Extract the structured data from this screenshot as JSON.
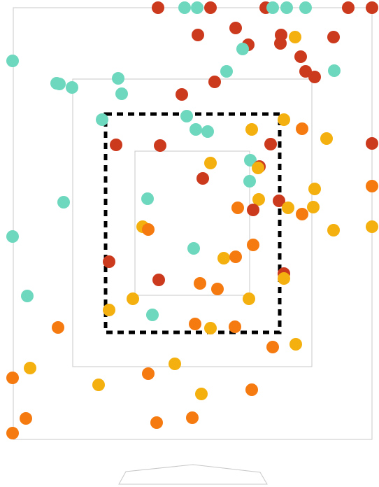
{
  "colors": {
    "background": "#ffffff",
    "outline": "#c8c8c8",
    "dashed_frame": "#000000",
    "dot_teal": "#6ed8bf",
    "dot_red": "#cc3a1e",
    "dot_orange": "#f57a10",
    "dot_yellow": "#f4b00e"
  },
  "legend_colors": [
    "dot_teal",
    "dot_red",
    "dot_orange",
    "dot_yellow"
  ]
}
